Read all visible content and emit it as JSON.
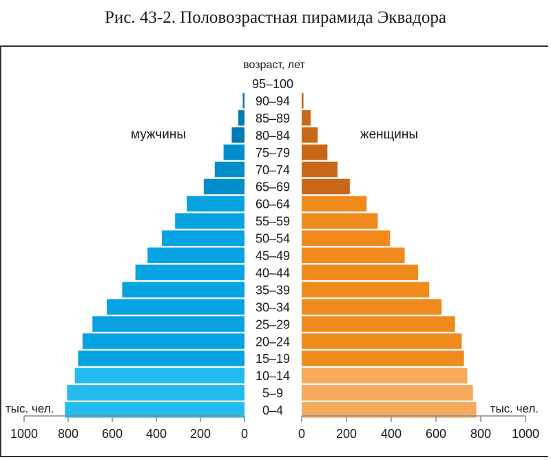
{
  "caption": "Рис. 43-2. Половозрастная пирамида Эквадора",
  "chart_data": {
    "type": "bar",
    "orientation": "horizontal-population-pyramid",
    "age_axis_label": "возраст, лет",
    "categories": [
      "95–100",
      "90–94",
      "85–89",
      "80–84",
      "75–79",
      "70–74",
      "65–69",
      "60–64",
      "55–59",
      "50–54",
      "45–49",
      "40–44",
      "35–39",
      "30–34",
      "25–29",
      "20–24",
      "15–19",
      "10–14",
      "5–9",
      "0–4"
    ],
    "series": [
      {
        "name": "мужчины",
        "side": "left",
        "values": [
          0,
          8,
          28,
          58,
          95,
          135,
          185,
          262,
          315,
          375,
          440,
          495,
          555,
          625,
          690,
          735,
          755,
          770,
          805,
          815
        ],
        "colors": [
          "#0079b4",
          "#0079b4",
          "#0079b4",
          "#0079b4",
          "#008dca",
          "#008dca",
          "#008dca",
          "#05a3e2",
          "#05a3e2",
          "#05a3e2",
          "#05a3e2",
          "#05a3e2",
          "#05a3e2",
          "#05a3e2",
          "#05a3e2",
          "#05a3e2",
          "#05a3e2",
          "#24bbee",
          "#24bbee",
          "#24bbee"
        ]
      },
      {
        "name": "женщины",
        "side": "right",
        "values": [
          0,
          8,
          40,
          72,
          115,
          160,
          215,
          290,
          340,
          395,
          460,
          520,
          570,
          625,
          685,
          715,
          725,
          740,
          765,
          780
        ],
        "colors": [
          "#c86718",
          "#c86718",
          "#c86718",
          "#c86718",
          "#c86718",
          "#c86718",
          "#c86718",
          "#f08a1c",
          "#f08a1c",
          "#f08a1c",
          "#f08a1c",
          "#f08a1c",
          "#f08a1c",
          "#f08a1c",
          "#f08a1c",
          "#f08a1c",
          "#f08a1c",
          "#f5aa5e",
          "#f5aa5e",
          "#f5aa5e"
        ]
      }
    ],
    "x_ticks": [
      "1000",
      "800",
      "600",
      "400",
      "200",
      "0"
    ],
    "x_ticks_right": [
      "0",
      "200",
      "400",
      "600",
      "800",
      "1000"
    ],
    "xlim": [
      0,
      1000
    ],
    "unit_label_left": "тыс. чел.",
    "unit_label_right": "тыс. чел."
  }
}
